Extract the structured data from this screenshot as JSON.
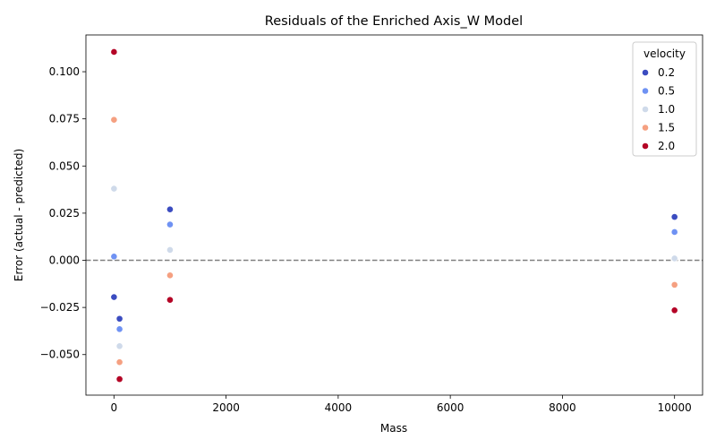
{
  "chart_data": {
    "type": "scatter",
    "title": "Residuals of the Enriched Axis_W Model",
    "xlabel": "Mass",
    "ylabel": "Error (actual - predicted)",
    "xlim": [
      -500,
      10500
    ],
    "ylim": [
      -0.0715,
      0.1195
    ],
    "xticks": [
      0,
      2000,
      4000,
      6000,
      8000,
      10000
    ],
    "xtick_labels": [
      "0",
      "2000",
      "4000",
      "6000",
      "8000",
      "10000"
    ],
    "yticks": [
      -0.05,
      -0.025,
      0.0,
      0.025,
      0.05,
      0.075,
      0.1
    ],
    "ytick_labels": [
      "−0.050",
      "−0.025",
      "0.000",
      "0.025",
      "0.050",
      "0.075",
      "0.100"
    ],
    "reference_line": {
      "y": 0.0,
      "style": "dashed",
      "color": "#808080"
    },
    "grid": false,
    "legend": {
      "title": "velocity",
      "placement": "top-right"
    },
    "series": [
      {
        "name": "0.2",
        "color": "#3b4cc0",
        "points": [
          [
            1,
            -0.0195
          ],
          [
            100,
            -0.031
          ],
          [
            1000,
            0.027
          ],
          [
            10000,
            0.023
          ]
        ]
      },
      {
        "name": "0.5",
        "color": "#6f92f3",
        "points": [
          [
            1,
            0.002
          ],
          [
            100,
            -0.0365
          ],
          [
            1000,
            0.019
          ],
          [
            10000,
            0.015
          ]
        ]
      },
      {
        "name": "1.0",
        "color": "#cfdaea",
        "points": [
          [
            1,
            0.038
          ],
          [
            100,
            -0.0455
          ],
          [
            1000,
            0.0055
          ],
          [
            10000,
            0.001
          ]
        ]
      },
      {
        "name": "1.5",
        "color": "#f5a081",
        "points": [
          [
            1,
            0.0745
          ],
          [
            100,
            -0.054
          ],
          [
            1000,
            -0.008
          ],
          [
            10000,
            -0.013
          ]
        ]
      },
      {
        "name": "2.0",
        "color": "#b40426",
        "points": [
          [
            1,
            0.1105
          ],
          [
            100,
            -0.063
          ],
          [
            1000,
            -0.021
          ],
          [
            10000,
            -0.0265
          ]
        ]
      }
    ]
  }
}
